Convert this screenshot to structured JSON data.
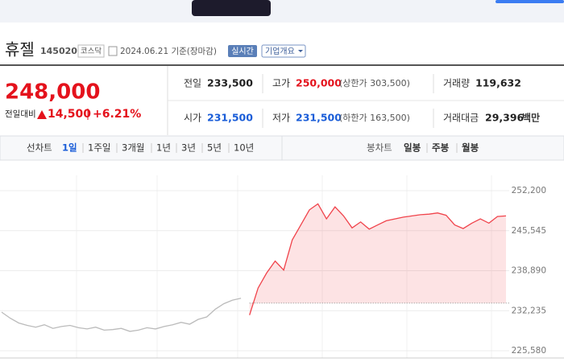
{
  "header": {
    "name": "휴젤",
    "code": "145020",
    "market": "코스닥",
    "date": "2024.06.21 기준(장마감)",
    "realtime": "실시간",
    "company_info": "기업개요"
  },
  "quote": {
    "price": "248,000",
    "change_label": "전일대비",
    "change": "14,500",
    "change_rate": "+6.21%"
  },
  "stats": [
    {
      "label": "전일",
      "value": "233,500"
    },
    {
      "label": "고가",
      "value": "250,000",
      "sub": "(상한가 303,500)"
    },
    {
      "label": "거래량",
      "value": "119,632"
    },
    {
      "label": "시가",
      "value": "231,500"
    },
    {
      "label": "저가",
      "value": "231,500",
      "sub": "(하한가 163,500)"
    },
    {
      "label": "거래대금",
      "value": "29,396",
      "sub": "백만"
    }
  ],
  "tabs": {
    "line_label": "선차트",
    "line_periods": [
      "1일",
      "1주일",
      "3개월",
      "1년",
      "3년",
      "5년",
      "10년"
    ],
    "candle_label": "봉차트",
    "candle_periods": [
      "일봉",
      "주봉",
      "월봉"
    ]
  },
  "chart_data": {
    "type": "line",
    "ylim": [
      225580,
      252200
    ],
    "yticks": [
      {
        "value": 252200,
        "label": "252,200"
      },
      {
        "value": 245545,
        "label": "245,545"
      },
      {
        "value": 238890,
        "label": "238,890"
      },
      {
        "value": 232235,
        "label": "232,235"
      },
      {
        "value": 225580,
        "label": "225,580"
      }
    ],
    "grid": true,
    "baseline": 233500,
    "series": [
      {
        "color": "#bbbbbb",
        "values": [
          232000,
          231000,
          230200,
          229800,
          229500,
          229900,
          229300,
          229600,
          229800,
          229400,
          229200,
          229500,
          229000,
          229100,
          229300,
          228800,
          229000,
          229400,
          229200,
          229600,
          229900,
          230300,
          230000,
          230800,
          231200,
          232500,
          233400,
          234000,
          234300,
          null,
          null,
          null,
          null,
          null,
          null,
          null,
          null,
          null,
          null,
          null,
          null,
          null,
          null,
          null,
          null,
          null,
          null,
          null,
          null,
          null,
          null,
          null,
          null,
          null,
          null,
          null,
          null,
          null,
          null,
          null
        ]
      },
      {
        "color": "#f0434b",
        "values": [
          null,
          null,
          null,
          null,
          null,
          null,
          null,
          null,
          null,
          null,
          null,
          null,
          null,
          null,
          null,
          null,
          null,
          null,
          null,
          null,
          null,
          null,
          null,
          null,
          null,
          null,
          null,
          null,
          null,
          231500,
          236000,
          238500,
          240500,
          239000,
          244000,
          246500,
          249000,
          250000,
          247500,
          249500,
          248000,
          246000,
          247000,
          245800,
          246500,
          247200,
          247500,
          247800,
          248000,
          248200,
          248300,
          248500,
          248100,
          246500,
          245900,
          246800,
          247500,
          246800,
          247900,
          248000
        ]
      }
    ]
  }
}
